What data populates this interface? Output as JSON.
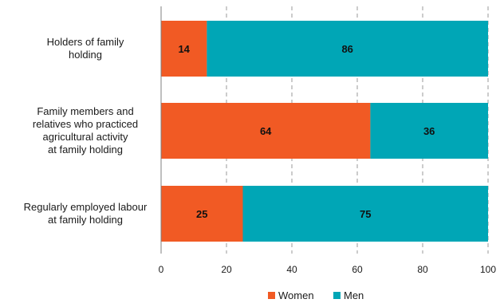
{
  "chart_data": {
    "type": "bar",
    "orientation": "horizontal",
    "stacked": true,
    "categories": [
      [
        "Holders of family",
        "holding"
      ],
      [
        "Family members and",
        "relatives  who practiced",
        "agricultural activity",
        "at family holding"
      ],
      [
        "Regularly employed labour",
        "at family holding"
      ]
    ],
    "series": [
      {
        "name": "Women",
        "color": "#f15a24",
        "values": [
          14,
          64,
          25
        ]
      },
      {
        "name": "Men",
        "color": "#00a6b6",
        "values": [
          86,
          36,
          75
        ]
      }
    ],
    "xlim": [
      0,
      100
    ],
    "xticks": [
      0,
      20,
      40,
      60,
      80,
      100
    ],
    "grid": "vertical-dashed",
    "legend_position": "bottom",
    "title": "",
    "xlabel": "",
    "ylabel": ""
  }
}
